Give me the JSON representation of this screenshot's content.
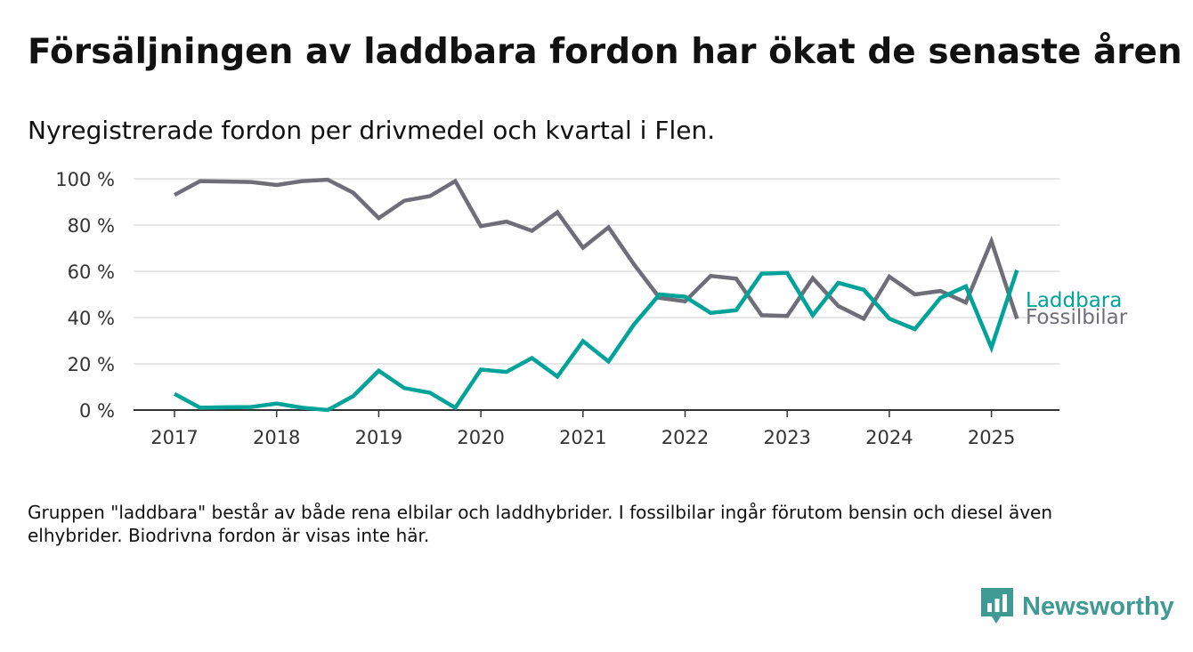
{
  "title": "Försäljningen av laddbara fordon har ökat de senaste åren",
  "subtitle": "Nyregistrerade fordon per drivmedel och kvartal i Flen.",
  "note": "Gruppen \"laddbara\" består av både rena elbilar och laddhybrider. I fossilbilar ingår förutom bensin och diesel även elhybrider. Biodrivna fordon är visas inte här.",
  "brand": {
    "name": "Newsworthy",
    "icon": "newsworthy-logo-icon"
  },
  "colors": {
    "laddbara": "#00a399",
    "fossilbilar": "#6f6e78",
    "grid": "#dddddd",
    "axis": "#333333",
    "brand": "#3e9a93"
  },
  "chart_data": {
    "type": "line",
    "title": "",
    "xlabel": "",
    "ylabel": "",
    "ylim": [
      0,
      100
    ],
    "xlim": [
      2017,
      2025.5
    ],
    "yticks": [
      0,
      20,
      40,
      60,
      80,
      100
    ],
    "ytick_labels": [
      "0 %",
      "20 %",
      "40 %",
      "60 %",
      "80 %",
      "100 %"
    ],
    "xticks": [
      2017,
      2018,
      2019,
      2020,
      2021,
      2022,
      2023,
      2024,
      2025
    ],
    "xtick_labels": [
      "2017",
      "2018",
      "2019",
      "2020",
      "2021",
      "2022",
      "2023",
      "2024",
      "2025"
    ],
    "grid": "horizontal",
    "x": [
      2017,
      2017.25,
      2017.5,
      2017.75,
      2018,
      2018.25,
      2018.5,
      2018.75,
      2019,
      2019.25,
      2019.5,
      2019.75,
      2020,
      2020.25,
      2020.5,
      2020.75,
      2021,
      2021.25,
      2021.5,
      2021.75,
      2022,
      2022.25,
      2022.5,
      2022.75,
      2023,
      2023.25,
      2023.5,
      2023.75,
      2024,
      2024.25,
      2024.5,
      2024.75,
      2025,
      2025.25
    ],
    "series": [
      {
        "name": "Laddbara",
        "color_key": "laddbara",
        "values": [
          7,
          1,
          1.2,
          1.3,
          2.8,
          1,
          0,
          6,
          17,
          9.5,
          7.5,
          1,
          17.5,
          16.5,
          22.5,
          14.5,
          29.8,
          21,
          37,
          50,
          49,
          42,
          43.2,
          59,
          59.3,
          41,
          55,
          52,
          39.5,
          35,
          48.5,
          53.5,
          27,
          60.5
        ]
      },
      {
        "name": "Fossilbilar",
        "color_key": "fossilbilar",
        "values": [
          93,
          99,
          98.8,
          98.6,
          97.3,
          99,
          99.6,
          94,
          83,
          90.5,
          92.5,
          99,
          79.5,
          81.5,
          77.5,
          85.5,
          70.2,
          79,
          63,
          48.5,
          47,
          58,
          56.8,
          41,
          40.7,
          57,
          45,
          39.5,
          57.7,
          50,
          51.5,
          46.5,
          73,
          39.5
        ]
      }
    ]
  }
}
